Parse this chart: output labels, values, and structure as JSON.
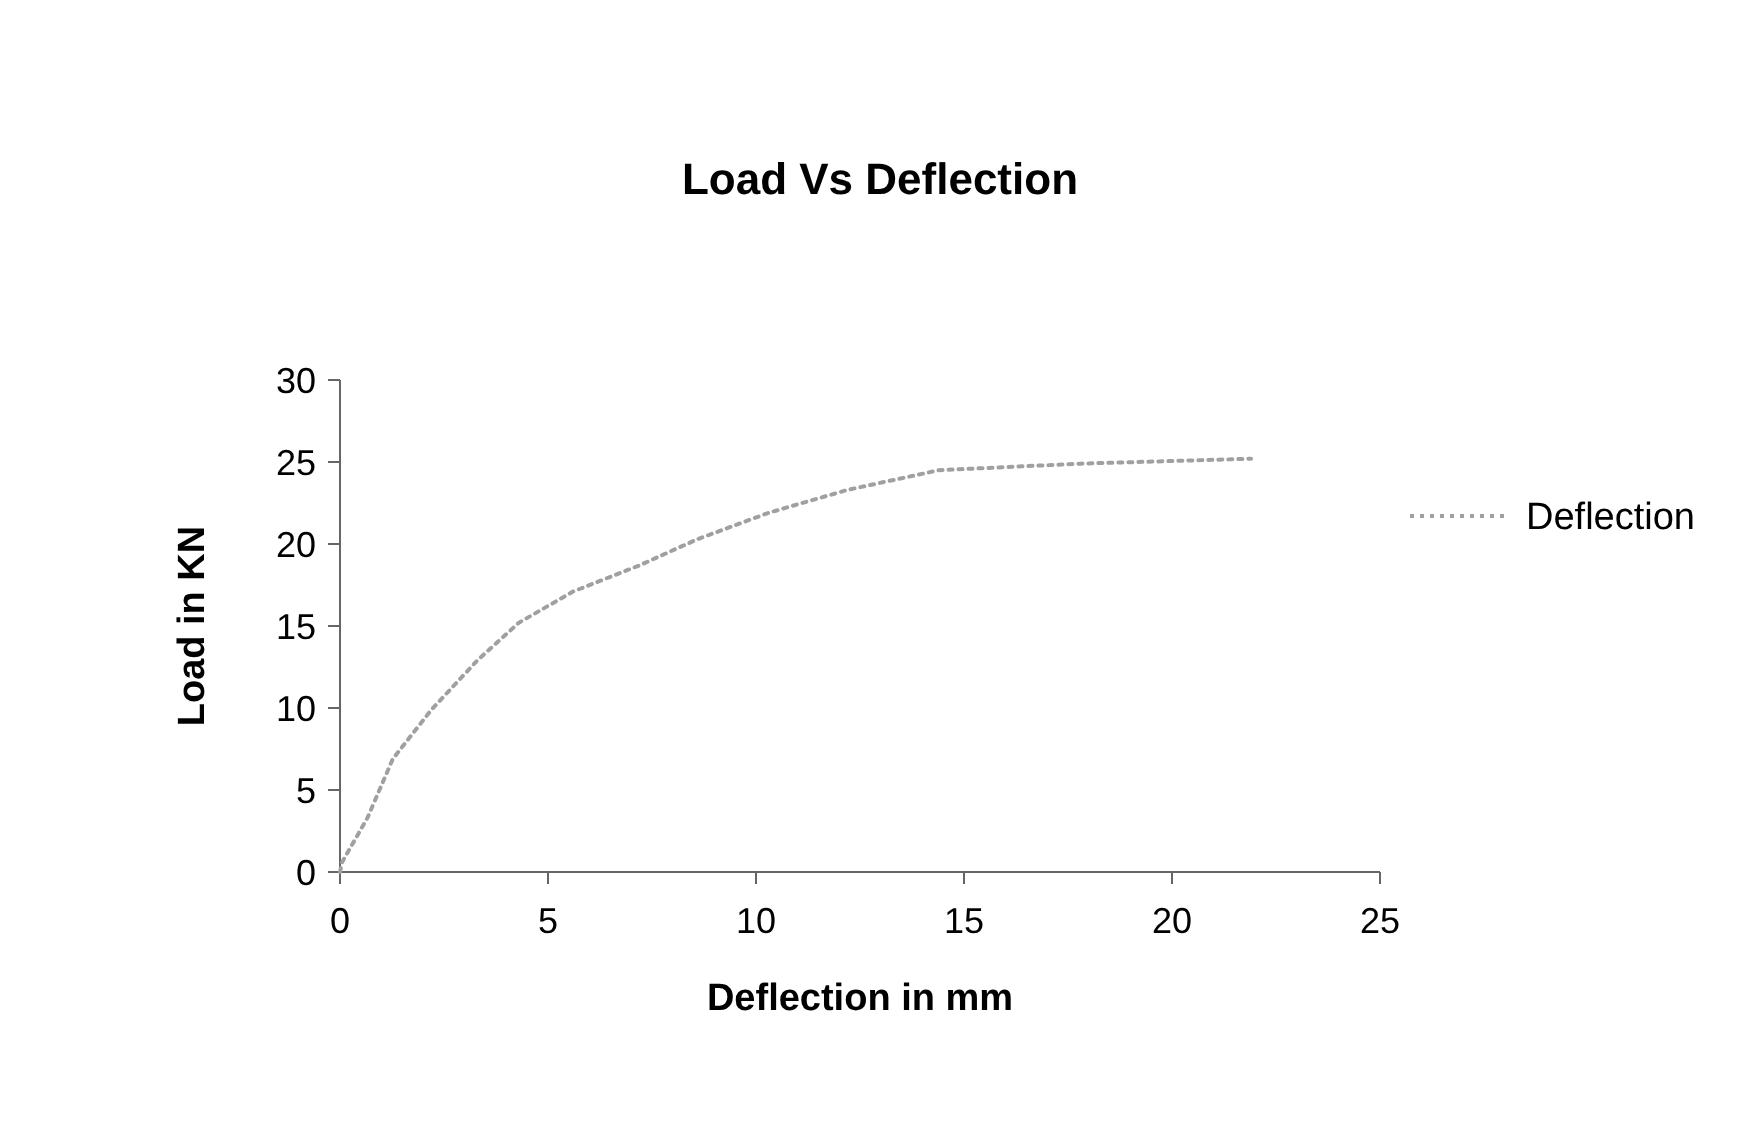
{
  "chart_data": {
    "type": "line",
    "title": "Load Vs Deflection",
    "xlabel": "Deflection in mm",
    "ylabel": "Load in KN",
    "xlim": [
      0,
      25
    ],
    "xticks": [
      0,
      5,
      10,
      15,
      20,
      25
    ],
    "ylim": [
      0,
      30
    ],
    "yticks": [
      0,
      5,
      10,
      15,
      20,
      25,
      30
    ],
    "legend": "right",
    "line_style": "dotted",
    "marker": "none",
    "series": [
      {
        "name": "Deflection",
        "color": "#a0a0a0",
        "x": [
          0,
          0.05,
          0.66,
          1.27,
          2.2,
          3.3,
          4.3,
          5.6,
          7.2,
          8.6,
          10.3,
          12.2,
          14.4,
          17.8,
          21.9
        ],
        "values": [
          0,
          0.6,
          3.3,
          6.9,
          9.9,
          12.9,
          15.2,
          17.1,
          18.7,
          20.3,
          21.9,
          23.3,
          24.5,
          24.9,
          25.2
        ]
      }
    ]
  }
}
